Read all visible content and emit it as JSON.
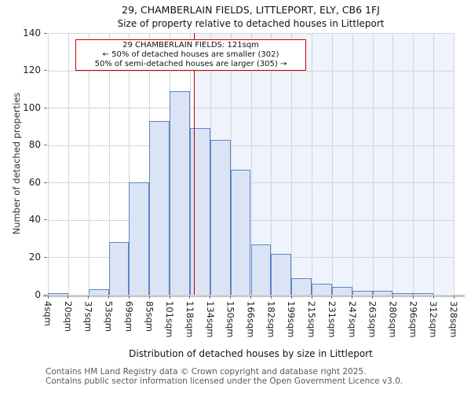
{
  "header": {
    "title": "29, CHAMBERLAIN FIELDS, LITTLEPORT, ELY, CB6 1FJ",
    "subtitle": "Size of property relative to detached houses in Littleport"
  },
  "annotation": {
    "line1": "29 CHAMBERLAIN FIELDS: 121sqm",
    "line2": "← 50% of detached houses are smaller (302)",
    "line3": "50% of semi-detached houses are larger (305) →"
  },
  "chart_data": {
    "type": "bar",
    "title": "29, CHAMBERLAIN FIELDS, LITTLEPORT, ELY, CB6 1FJ",
    "subtitle": "Size of property relative to detached houses in Littleport",
    "xlabel": "Distribution of detached houses by size in Littleport",
    "ylabel": "Number of detached properties",
    "bin_edges_sqm": [
      4,
      20,
      37,
      53,
      69,
      85,
      101,
      118,
      134,
      150,
      166,
      182,
      199,
      215,
      231,
      247,
      263,
      280,
      296,
      312,
      328
    ],
    "x_tick_labels": [
      "4sqm",
      "20sqm",
      "37sqm",
      "53sqm",
      "69sqm",
      "85sqm",
      "101sqm",
      "118sqm",
      "134sqm",
      "150sqm",
      "166sqm",
      "182sqm",
      "199sqm",
      "215sqm",
      "231sqm",
      "247sqm",
      "263sqm",
      "280sqm",
      "296sqm",
      "312sqm",
      "328sqm"
    ],
    "values": [
      1,
      0,
      3,
      28,
      60,
      93,
      109,
      89,
      83,
      67,
      27,
      22,
      9,
      6,
      4,
      2,
      2,
      1,
      1,
      0
    ],
    "y_ticks": [
      0,
      20,
      40,
      60,
      80,
      100,
      120,
      140
    ],
    "ylim": [
      0,
      140
    ],
    "x_range_sqm": [
      4,
      328
    ],
    "grid": true,
    "legend": "none",
    "marker": {
      "sqm": 121,
      "label": "121sqm",
      "smaller_count": 302,
      "larger_count": 305
    },
    "colors": {
      "bar_fill": "#dbe4f4",
      "bar_edge": "#5a86c8",
      "marker_line": "#bb0000",
      "annotation_border": "#cc0000",
      "shade_right_of_marker": "#eff3fb",
      "gridline": "#d4d4dc"
    }
  },
  "footer": {
    "line1": "Contains HM Land Registry data © Crown copyright and database right 2025.",
    "line2": "Contains public sector information licensed under the Open Government Licence v3.0."
  }
}
